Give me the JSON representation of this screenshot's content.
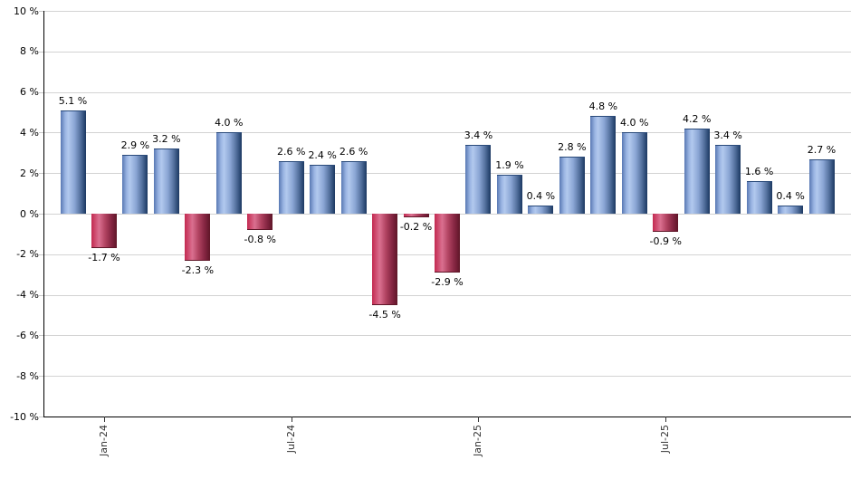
{
  "chart_data": {
    "type": "bar",
    "title": "",
    "values": [
      5.1,
      -1.7,
      2.9,
      3.2,
      -2.3,
      4.0,
      -0.8,
      2.6,
      2.4,
      2.6,
      -4.5,
      -0.2,
      -2.9,
      3.4,
      1.9,
      0.4,
      2.8,
      4.8,
      4.0,
      -0.9,
      4.2,
      3.4,
      1.6,
      0.4,
      2.7
    ],
    "bar_labels": [
      "5.1 %",
      "-1.7 %",
      "2.9 %",
      "3.2 %",
      "-2.3 %",
      "4.0 %",
      "-0.8 %",
      "2.6 %",
      "2.4 %",
      "2.6 %",
      "-4.5 %",
      "-0.2 %",
      "-2.9 %",
      "3.4 %",
      "1.9 %",
      "0.4 %",
      "2.8 %",
      "4.8 %",
      "4.0 %",
      "-0.9 %",
      "4.2 %",
      "3.4 %",
      "1.6 %",
      "0.4 %",
      "2.7 %"
    ],
    "x_axis": {
      "tick_labels": [
        "Jan-24",
        "Jul-24",
        "Jan-25",
        "Jul-25"
      ],
      "tick_bar_indices": [
        1,
        7,
        13,
        19
      ]
    },
    "y_axis": {
      "tick_labels": [
        "10 %",
        "8 %",
        "6 %",
        "4 %",
        "2 %",
        "0 %",
        "-2 %",
        "-4 %",
        "-6 %",
        "-8 %",
        "-10 %"
      ],
      "tick_values": [
        10,
        8,
        6,
        4,
        2,
        0,
        -2,
        -4,
        -6,
        -8,
        -10
      ],
      "ylim": [
        -10,
        10
      ]
    },
    "grid": "horizontal",
    "legend": "none",
    "colors": {
      "positive_bar_edge": "#5878b3",
      "positive_bar_light": "#b2c9ee",
      "positive_bar_dark": "#1d3760",
      "negative_bar_edge": "#c32950",
      "negative_bar_light": "#da7090",
      "negative_bar_dark": "#5f1628",
      "gridline": "#d3d3d3",
      "axis": "#000000",
      "text": "#000000"
    }
  }
}
